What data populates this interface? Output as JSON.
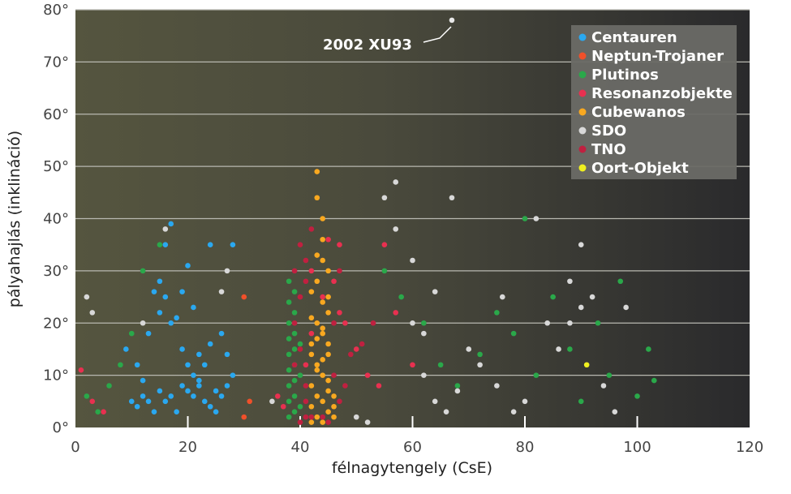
{
  "chart_data": {
    "type": "scatter",
    "xlabel": "félnagytengely (CsE)",
    "ylabel": "pályahajlás (inklináció)",
    "xlim": [
      0,
      120
    ],
    "ylim": [
      0,
      80
    ],
    "x_ticks": [
      "0",
      "20",
      "40",
      "60",
      "80",
      "100",
      "120"
    ],
    "y_ticks": [
      "0°",
      "10°",
      "20°",
      "30°",
      "40°",
      "50°",
      "60°",
      "70°",
      "80°"
    ],
    "grid": "horizontal",
    "legend_position": "top-right",
    "background": "#4a4a3c",
    "annotation": {
      "text": "2002 XU93",
      "x": 67,
      "y": 78
    },
    "series": [
      {
        "name": "Centauren",
        "color": "#2aa8f0",
        "points": [
          [
            10,
            5
          ],
          [
            11,
            4
          ],
          [
            12,
            6
          ],
          [
            13,
            5
          ],
          [
            14,
            3
          ],
          [
            15,
            7
          ],
          [
            16,
            5
          ],
          [
            17,
            6
          ],
          [
            18,
            3
          ],
          [
            19,
            8
          ],
          [
            20,
            7
          ],
          [
            21,
            6
          ],
          [
            22,
            9
          ],
          [
            23,
            5
          ],
          [
            24,
            4
          ],
          [
            25,
            3
          ],
          [
            26,
            6
          ],
          [
            27,
            8
          ],
          [
            28,
            10
          ],
          [
            9,
            15
          ],
          [
            11,
            12
          ],
          [
            13,
            18
          ],
          [
            15,
            22
          ],
          [
            16,
            25
          ],
          [
            17,
            20
          ],
          [
            18,
            21
          ],
          [
            19,
            15
          ],
          [
            20,
            12
          ],
          [
            21,
            10
          ],
          [
            22,
            14
          ],
          [
            23,
            12
          ],
          [
            24,
            16
          ],
          [
            26,
            18
          ],
          [
            27,
            14
          ],
          [
            16,
            35
          ],
          [
            17,
            39
          ],
          [
            20,
            31
          ],
          [
            24,
            35
          ],
          [
            28,
            35
          ],
          [
            19,
            26
          ],
          [
            21,
            23
          ],
          [
            14,
            26
          ],
          [
            15,
            28
          ],
          [
            22,
            8
          ],
          [
            25,
            7
          ],
          [
            12,
            9
          ]
        ]
      },
      {
        "name": "Neptun-Trojaner",
        "color": "#f0502a",
        "points": [
          [
            30,
            25
          ],
          [
            30,
            2
          ],
          [
            31,
            5
          ]
        ]
      },
      {
        "name": "Plutinos",
        "color": "#2aa84a",
        "points": [
          [
            38,
            2
          ],
          [
            38,
            5
          ],
          [
            38,
            8
          ],
          [
            38,
            11
          ],
          [
            38,
            14
          ],
          [
            38,
            17
          ],
          [
            38,
            20
          ],
          [
            38,
            24
          ],
          [
            38,
            28
          ],
          [
            39,
            3
          ],
          [
            39,
            6
          ],
          [
            39,
            9
          ],
          [
            39,
            12
          ],
          [
            39,
            15
          ],
          [
            39,
            18
          ],
          [
            39,
            22
          ],
          [
            39,
            26
          ],
          [
            40,
            4
          ],
          [
            40,
            10
          ],
          [
            40,
            16
          ],
          [
            2,
            6
          ],
          [
            4,
            3
          ],
          [
            6,
            8
          ],
          [
            8,
            12
          ],
          [
            10,
            18
          ],
          [
            12,
            30
          ],
          [
            15,
            35
          ],
          [
            55,
            30
          ],
          [
            58,
            25
          ],
          [
            62,
            20
          ],
          [
            65,
            12
          ],
          [
            68,
            8
          ],
          [
            72,
            14
          ],
          [
            75,
            22
          ],
          [
            78,
            18
          ],
          [
            80,
            40
          ],
          [
            82,
            10
          ],
          [
            85,
            25
          ],
          [
            88,
            15
          ],
          [
            90,
            5
          ],
          [
            93,
            20
          ],
          [
            95,
            10
          ],
          [
            97,
            28
          ],
          [
            100,
            6
          ],
          [
            102,
            15
          ],
          [
            103,
            9
          ]
        ]
      },
      {
        "name": "Resonanzobjekte",
        "color": "#e83050",
        "points": [
          [
            1,
            11
          ],
          [
            3,
            5
          ],
          [
            5,
            3
          ],
          [
            36,
            6
          ],
          [
            37,
            4
          ],
          [
            41,
            12
          ],
          [
            42,
            18
          ],
          [
            44,
            25
          ],
          [
            46,
            28
          ],
          [
            47,
            35
          ],
          [
            48,
            20
          ],
          [
            50,
            15
          ],
          [
            52,
            10
          ],
          [
            54,
            8
          ],
          [
            55,
            35
          ],
          [
            57,
            22
          ],
          [
            60,
            12
          ],
          [
            45,
            36
          ],
          [
            42,
            30
          ],
          [
            47,
            22
          ]
        ]
      },
      {
        "name": "Cubewanos",
        "color": "#f8a820",
        "points": [
          [
            43,
            49
          ],
          [
            43,
            44
          ],
          [
            44,
            36
          ],
          [
            44,
            32
          ],
          [
            45,
            30
          ],
          [
            43,
            28
          ],
          [
            42,
            26
          ],
          [
            44,
            24
          ],
          [
            45,
            22
          ],
          [
            43,
            20
          ],
          [
            44,
            18
          ],
          [
            42,
            16
          ],
          [
            45,
            14
          ],
          [
            43,
            12
          ],
          [
            44,
            10
          ],
          [
            42,
            8
          ],
          [
            45,
            7
          ],
          [
            43,
            6
          ],
          [
            44,
            5
          ],
          [
            42,
            4
          ],
          [
            45,
            3
          ],
          [
            43,
            2
          ],
          [
            44,
            1
          ],
          [
            42,
            1
          ],
          [
            46,
            2
          ],
          [
            46,
            4
          ],
          [
            46,
            6
          ],
          [
            45,
            9
          ],
          [
            43,
            11
          ],
          [
            44,
            13
          ],
          [
            42,
            14
          ],
          [
            45,
            16
          ],
          [
            43,
            17
          ],
          [
            44,
            19
          ],
          [
            42,
            21
          ],
          [
            45,
            25
          ],
          [
            43,
            33
          ],
          [
            44,
            40
          ]
        ]
      },
      {
        "name": "SDO",
        "color": "#d8d8d8",
        "points": [
          [
            2,
            25
          ],
          [
            3,
            22
          ],
          [
            12,
            20
          ],
          [
            16,
            38
          ],
          [
            26,
            26
          ],
          [
            27,
            30
          ],
          [
            35,
            5
          ],
          [
            50,
            2
          ],
          [
            52,
            1
          ],
          [
            55,
            44
          ],
          [
            57,
            47
          ],
          [
            60,
            20
          ],
          [
            62,
            18
          ],
          [
            64,
            5
          ],
          [
            66,
            3
          ],
          [
            67,
            44
          ],
          [
            68,
            7
          ],
          [
            70,
            15
          ],
          [
            72,
            12
          ],
          [
            75,
            8
          ],
          [
            78,
            3
          ],
          [
            80,
            5
          ],
          [
            82,
            40
          ],
          [
            84,
            20
          ],
          [
            86,
            15
          ],
          [
            88,
            28
          ],
          [
            90,
            23
          ],
          [
            92,
            25
          ],
          [
            94,
            8
          ],
          [
            96,
            3
          ],
          [
            98,
            23
          ],
          [
            57,
            38
          ],
          [
            60,
            32
          ],
          [
            64,
            26
          ],
          [
            76,
            25
          ],
          [
            88,
            20
          ],
          [
            90,
            35
          ],
          [
            62,
            10
          ]
        ]
      },
      {
        "name": "TNO",
        "color": "#c02040",
        "points": [
          [
            39,
            30
          ],
          [
            39,
            20
          ],
          [
            40,
            25
          ],
          [
            40,
            35
          ],
          [
            40,
            15
          ],
          [
            41,
            8
          ],
          [
            41,
            2
          ],
          [
            41,
            5
          ],
          [
            41,
            28
          ],
          [
            42,
            38
          ],
          [
            46,
            10
          ],
          [
            46,
            20
          ],
          [
            47,
            30
          ],
          [
            48,
            8
          ],
          [
            49,
            14
          ],
          [
            51,
            16
          ],
          [
            53,
            20
          ],
          [
            45,
            1
          ],
          [
            44,
            2
          ],
          [
            47,
            5
          ],
          [
            40,
            1
          ],
          [
            39,
            12
          ],
          [
            41,
            32
          ],
          [
            42,
            2
          ]
        ]
      },
      {
        "name": "Oort-Objekt",
        "color": "#f0f020",
        "points": [
          [
            91,
            12
          ]
        ]
      }
    ]
  }
}
